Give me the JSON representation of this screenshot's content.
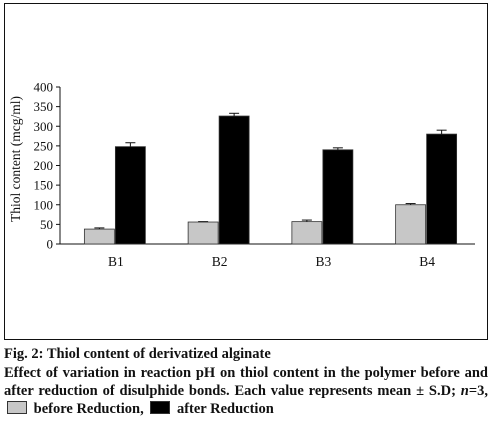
{
  "chart_data": {
    "type": "bar",
    "categories": [
      "B1",
      "B2",
      "B3",
      "B4"
    ],
    "series": [
      {
        "name": "before Reduction",
        "values": [
          38,
          56,
          57,
          100
        ],
        "errors": [
          3,
          1,
          4,
          3
        ],
        "color": "#c7c7c7"
      },
      {
        "name": "after Reduction",
        "values": [
          248,
          326,
          240,
          280
        ],
        "errors": [
          10,
          7,
          5,
          10
        ],
        "color": "#000000"
      }
    ],
    "ylabel": "Thiol content (mcg/ml)",
    "xlabel": "",
    "ylim": [
      0,
      400
    ],
    "yticks": [
      "0",
      "50",
      "100",
      "150",
      "200",
      "250",
      "300",
      "350",
      "400"
    ],
    "grid": false
  },
  "caption": {
    "title": "Fig. 2: Thiol content of derivatized alginate",
    "body_text": "Effect of variation in reaction pH on thiol content in the polymer before and after reduction of disulphide bonds. Each value represents mean ± S.D; ",
    "n_label": "n",
    "n_value": "=3, ",
    "before_label": "before Reduction,",
    "after_label": "after Reduction"
  }
}
